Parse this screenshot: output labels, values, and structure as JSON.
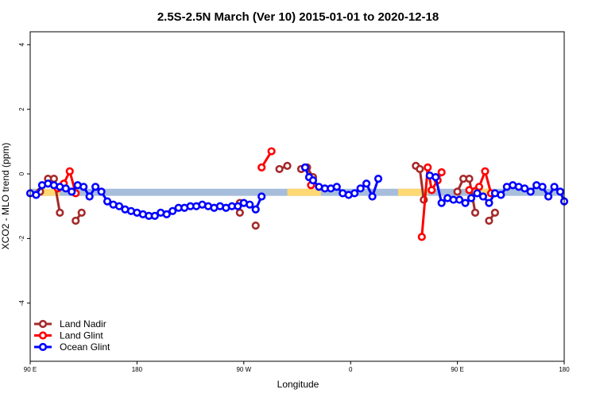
{
  "chart_data": {
    "type": "line",
    "title": "2.5S-2.5N March (Ver 10)   2015-01-01 to 2020-12-18",
    "xlabel": "Longitude",
    "ylabel": "XCO2 - MLO trend (ppm)",
    "xlim": [
      -90,
      180
    ],
    "ylim": [
      -5.8,
      4.4
    ],
    "x_ticks": [
      {
        "value": -90,
        "label": "90 E"
      },
      {
        "value": -36,
        "label": "180"
      },
      {
        "value": 18,
        "label": "90 W"
      },
      {
        "value": 72,
        "label": "0"
      },
      {
        "value": 126,
        "label": "90 E"
      },
      {
        "value": 180,
        "label": "180"
      }
    ],
    "y_ticks": [
      -4,
      -2,
      0,
      2,
      4
    ],
    "legend_position": "bottom-left",
    "background_bands": [
      {
        "color": "#a6bddb",
        "x": [
          -90,
          180
        ],
        "y": [
          -0.68,
          -0.46
        ]
      },
      {
        "color": "#fdd873",
        "x": [
          -84,
          -75
        ],
        "y": [
          -0.68,
          -0.46
        ]
      },
      {
        "color": "#fdd873",
        "x": [
          40,
          57
        ],
        "y": [
          -0.68,
          -0.46
        ]
      },
      {
        "color": "#fdd873",
        "x": [
          96,
          111
        ],
        "y": [
          -0.68,
          -0.46
        ]
      },
      {
        "color": "#fdd873",
        "x": [
          134,
          143
        ],
        "y": [
          -0.68,
          -0.46
        ]
      }
    ],
    "series": [
      {
        "name": "Land Nadir",
        "color": "#a52a2a",
        "segments": [
          [
            [
              -85,
              -0.55
            ],
            [
              -81,
              -0.15
            ],
            [
              -78,
              -0.15
            ],
            [
              -75,
              -1.2
            ]
          ],
          [
            [
              -67,
              -1.45
            ],
            [
              -64,
              -1.2
            ]
          ],
          [
            [
              16,
              -0.9
            ],
            [
              16,
              -1.2
            ]
          ],
          [
            [
              24,
              -1.6
            ]
          ],
          [
            [
              36,
              0.15
            ],
            [
              40,
              0.25
            ]
          ],
          [
            [
              47,
              0.15
            ],
            [
              50,
              0.2
            ],
            [
              53,
              -0.1
            ]
          ],
          [
            [
              105,
              0.25
            ],
            [
              107,
              0.15
            ],
            [
              109,
              -0.8
            ]
          ],
          [
            [
              126,
              -0.55
            ],
            [
              129,
              -0.15
            ],
            [
              132,
              -0.15
            ],
            [
              135,
              -1.2
            ]
          ],
          [
            [
              142,
              -1.45
            ],
            [
              145,
              -1.2
            ]
          ]
        ]
      },
      {
        "name": "Land Glint",
        "color": "#ff0000",
        "segments": [
          [
            [
              -76,
              -0.45
            ],
            [
              -73,
              -0.3
            ],
            [
              -70,
              0.08
            ],
            [
              -67,
              -0.6
            ]
          ],
          [
            [
              27,
              0.2
            ],
            [
              32,
              0.7
            ]
          ],
          [
            [
              52,
              -0.35
            ]
          ],
          [
            [
              108,
              -1.95
            ],
            [
              111,
              0.2
            ],
            [
              113,
              -0.5
            ],
            [
              116,
              -0.2
            ],
            [
              118,
              0.05
            ]
          ],
          [
            [
              132,
              -0.5
            ],
            [
              137,
              -0.4
            ],
            [
              140,
              0.08
            ],
            [
              143,
              -0.6
            ]
          ]
        ]
      },
      {
        "name": "Ocean Glint",
        "color": "#0000ff",
        "segments": [
          [
            [
              -90,
              -0.6
            ],
            [
              -87,
              -0.65
            ],
            [
              -84,
              -0.35
            ],
            [
              -81,
              -0.3
            ],
            [
              -78,
              -0.35
            ],
            [
              -75,
              -0.4
            ],
            [
              -72,
              -0.45
            ],
            [
              -69,
              -0.55
            ],
            [
              -66,
              -0.35
            ],
            [
              -63,
              -0.4
            ],
            [
              -60,
              -0.7
            ],
            [
              -57,
              -0.4
            ],
            [
              -54,
              -0.55
            ],
            [
              -51,
              -0.85
            ],
            [
              -48,
              -0.95
            ],
            [
              -45,
              -1.0
            ],
            [
              -42,
              -1.1
            ],
            [
              -39,
              -1.15
            ],
            [
              -36,
              -1.2
            ],
            [
              -33,
              -1.25
            ],
            [
              -30,
              -1.3
            ],
            [
              -27,
              -1.3
            ],
            [
              -24,
              -1.2
            ],
            [
              -21,
              -1.25
            ],
            [
              -18,
              -1.15
            ],
            [
              -15,
              -1.05
            ],
            [
              -12,
              -1.05
            ],
            [
              -9,
              -1.0
            ],
            [
              -6,
              -1.0
            ],
            [
              -3,
              -0.95
            ],
            [
              0,
              -1.0
            ],
            [
              3,
              -1.05
            ],
            [
              6,
              -1.0
            ],
            [
              9,
              -1.05
            ],
            [
              12,
              -1.0
            ],
            [
              15,
              -1.0
            ],
            [
              18,
              -0.9
            ],
            [
              21,
              -0.95
            ],
            [
              24,
              -1.1
            ],
            [
              27,
              -0.7
            ]
          ],
          [
            [
              49,
              0.2
            ],
            [
              51,
              -0.1
            ],
            [
              53,
              -0.2
            ],
            [
              56,
              -0.4
            ],
            [
              59,
              -0.45
            ],
            [
              62,
              -0.45
            ],
            [
              65,
              -0.4
            ],
            [
              68,
              -0.6
            ],
            [
              71,
              -0.65
            ],
            [
              74,
              -0.6
            ],
            [
              77,
              -0.45
            ],
            [
              80,
              -0.3
            ],
            [
              83,
              -0.7
            ],
            [
              86,
              -0.15
            ]
          ],
          [
            [
              112,
              -0.05
            ],
            [
              115,
              -0.1
            ],
            [
              118,
              -0.9
            ],
            [
              121,
              -0.75
            ],
            [
              124,
              -0.8
            ],
            [
              127,
              -0.8
            ],
            [
              130,
              -0.9
            ],
            [
              133,
              -0.75
            ],
            [
              136,
              -0.6
            ],
            [
              139,
              -0.7
            ],
            [
              142,
              -0.9
            ],
            [
              145,
              -0.6
            ],
            [
              148,
              -0.65
            ],
            [
              151,
              -0.4
            ],
            [
              154,
              -0.35
            ],
            [
              157,
              -0.4
            ],
            [
              160,
              -0.45
            ],
            [
              163,
              -0.55
            ],
            [
              166,
              -0.35
            ],
            [
              169,
              -0.4
            ],
            [
              172,
              -0.7
            ],
            [
              175,
              -0.4
            ],
            [
              178,
              -0.55
            ],
            [
              180,
              -0.85
            ]
          ]
        ]
      }
    ]
  }
}
